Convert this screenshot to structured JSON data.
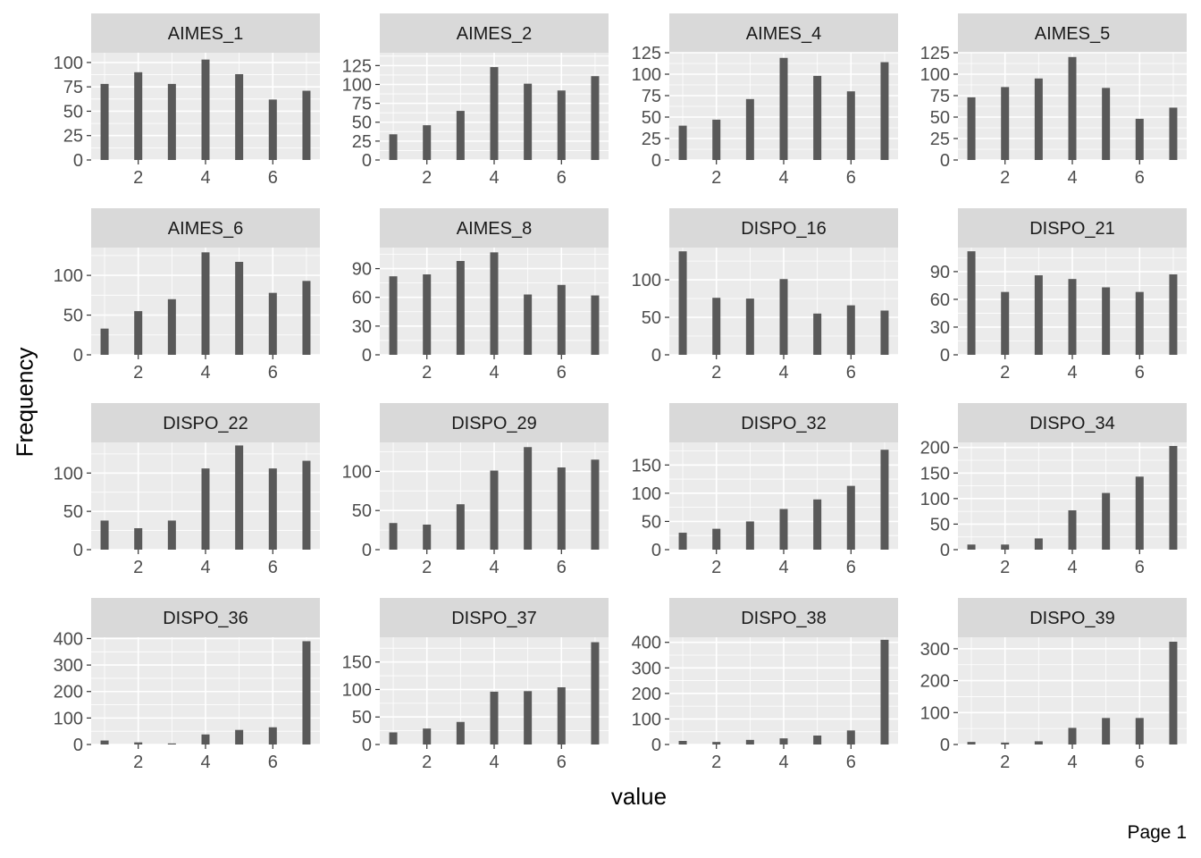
{
  "xlabel": "value",
  "ylabel": "Frequency",
  "footer": "Page 1",
  "colors": {
    "panel_bg": "#EBEBEB",
    "strip_bg": "#D9D9D9",
    "grid_major": "#FFFFFF",
    "bar": "#595959",
    "tick_text": "#4D4D4D",
    "strip_text": "#1A1A1A"
  },
  "chart_data": [
    {
      "type": "bar",
      "title": "AIMES_1",
      "x": [
        1,
        2,
        3,
        4,
        5,
        6,
        7
      ],
      "values": [
        78,
        90,
        78,
        103,
        88,
        62,
        71
      ],
      "xlim": [
        0.6,
        7.4
      ],
      "xticks": [
        2,
        4,
        6
      ],
      "ylim": [
        0,
        110
      ],
      "yticks": [
        0,
        25,
        50,
        75,
        100
      ]
    },
    {
      "type": "bar",
      "title": "AIMES_2",
      "x": [
        1,
        2,
        3,
        4,
        5,
        6,
        7
      ],
      "values": [
        34,
        46,
        65,
        123,
        101,
        92,
        111
      ],
      "xlim": [
        0.6,
        7.4
      ],
      "xticks": [
        2,
        4,
        6
      ],
      "ylim": [
        0,
        142
      ],
      "yticks": [
        0,
        25,
        50,
        75,
        100,
        125
      ]
    },
    {
      "type": "bar",
      "title": "AIMES_4",
      "x": [
        1,
        2,
        3,
        4,
        5,
        6,
        7
      ],
      "values": [
        40,
        47,
        71,
        119,
        98,
        80,
        114
      ],
      "xlim": [
        0.6,
        7.4
      ],
      "xticks": [
        2,
        4,
        6
      ],
      "ylim": [
        0,
        125
      ],
      "yticks": [
        0,
        25,
        50,
        75,
        100,
        125
      ]
    },
    {
      "type": "bar",
      "title": "AIMES_5",
      "x": [
        1,
        2,
        3,
        4,
        5,
        6,
        7
      ],
      "values": [
        73,
        85,
        95,
        120,
        84,
        48,
        61
      ],
      "xlim": [
        0.6,
        7.4
      ],
      "xticks": [
        2,
        4,
        6
      ],
      "ylim": [
        0,
        125
      ],
      "yticks": [
        0,
        25,
        50,
        75,
        100,
        125
      ]
    },
    {
      "type": "bar",
      "title": "AIMES_6",
      "x": [
        1,
        2,
        3,
        4,
        5,
        6,
        7
      ],
      "values": [
        33,
        55,
        70,
        129,
        117,
        78,
        93
      ],
      "xlim": [
        0.6,
        7.4
      ],
      "xticks": [
        2,
        4,
        6
      ],
      "ylim": [
        0,
        135
      ],
      "yticks": [
        0,
        50,
        100
      ]
    },
    {
      "type": "bar",
      "title": "AIMES_8",
      "x": [
        1,
        2,
        3,
        4,
        5,
        6,
        7
      ],
      "values": [
        82,
        84,
        98,
        107,
        63,
        73,
        62
      ],
      "xlim": [
        0.6,
        7.4
      ],
      "xticks": [
        2,
        4,
        6
      ],
      "ylim": [
        0,
        112
      ],
      "yticks": [
        0,
        30,
        60,
        90
      ]
    },
    {
      "type": "bar",
      "title": "DISPO_16",
      "x": [
        1,
        2,
        3,
        4,
        5,
        6,
        7
      ],
      "values": [
        138,
        76,
        75,
        101,
        55,
        66,
        59
      ],
      "xlim": [
        0.6,
        7.4
      ],
      "xticks": [
        2,
        4,
        6
      ],
      "ylim": [
        0,
        143
      ],
      "yticks": [
        0,
        50,
        100
      ]
    },
    {
      "type": "bar",
      "title": "DISPO_21",
      "x": [
        1,
        2,
        3,
        4,
        5,
        6,
        7
      ],
      "values": [
        112,
        68,
        86,
        82,
        73,
        68,
        87
      ],
      "xlim": [
        0.6,
        7.4
      ],
      "xticks": [
        2,
        4,
        6
      ],
      "ylim": [
        0,
        116
      ],
      "yticks": [
        0,
        30,
        60,
        90
      ]
    },
    {
      "type": "bar",
      "title": "DISPO_22",
      "x": [
        1,
        2,
        3,
        4,
        5,
        6,
        7
      ],
      "values": [
        38,
        28,
        38,
        106,
        136,
        106,
        116
      ],
      "xlim": [
        0.6,
        7.4
      ],
      "xticks": [
        2,
        4,
        6
      ],
      "ylim": [
        0,
        140
      ],
      "yticks": [
        0,
        50,
        100
      ]
    },
    {
      "type": "bar",
      "title": "DISPO_29",
      "x": [
        1,
        2,
        3,
        4,
        5,
        6,
        7
      ],
      "values": [
        34,
        32,
        58,
        101,
        131,
        105,
        115
      ],
      "xlim": [
        0.6,
        7.4
      ],
      "xticks": [
        2,
        4,
        6
      ],
      "ylim": [
        0,
        137
      ],
      "yticks": [
        0,
        50,
        100
      ]
    },
    {
      "type": "bar",
      "title": "DISPO_32",
      "x": [
        1,
        2,
        3,
        4,
        5,
        6,
        7
      ],
      "values": [
        30,
        37,
        50,
        72,
        89,
        113,
        177
      ],
      "xlim": [
        0.6,
        7.4
      ],
      "xticks": [
        2,
        4,
        6
      ],
      "ylim": [
        0,
        190
      ],
      "yticks": [
        0,
        50,
        100,
        150
      ]
    },
    {
      "type": "bar",
      "title": "DISPO_34",
      "x": [
        1,
        2,
        3,
        4,
        5,
        6,
        7
      ],
      "values": [
        10,
        10,
        22,
        77,
        111,
        143,
        203
      ],
      "xlim": [
        0.6,
        7.4
      ],
      "xticks": [
        2,
        4,
        6
      ],
      "ylim": [
        0,
        210
      ],
      "yticks": [
        0,
        50,
        100,
        150,
        200
      ]
    },
    {
      "type": "bar",
      "title": "DISPO_36",
      "x": [
        1,
        2,
        3,
        4,
        5,
        6,
        7
      ],
      "values": [
        15,
        8,
        4,
        38,
        55,
        65,
        390
      ],
      "xlim": [
        0.6,
        7.4
      ],
      "xticks": [
        2,
        4,
        6
      ],
      "ylim": [
        0,
        405
      ],
      "yticks": [
        0,
        100,
        200,
        300,
        400
      ]
    },
    {
      "type": "bar",
      "title": "DISPO_37",
      "x": [
        1,
        2,
        3,
        4,
        5,
        6,
        7
      ],
      "values": [
        22,
        29,
        41,
        96,
        97,
        104,
        186
      ],
      "xlim": [
        0.6,
        7.4
      ],
      "xticks": [
        2,
        4,
        6
      ],
      "ylim": [
        0,
        195
      ],
      "yticks": [
        0,
        50,
        100,
        150
      ]
    },
    {
      "type": "bar",
      "title": "DISPO_38",
      "x": [
        1,
        2,
        3,
        4,
        5,
        6,
        7
      ],
      "values": [
        14,
        10,
        18,
        24,
        35,
        55,
        410
      ],
      "xlim": [
        0.6,
        7.4
      ],
      "xticks": [
        2,
        4,
        6
      ],
      "ylim": [
        0,
        420
      ],
      "yticks": [
        0,
        100,
        200,
        300,
        400
      ]
    },
    {
      "type": "bar",
      "title": "DISPO_39",
      "x": [
        1,
        2,
        3,
        4,
        5,
        6,
        7
      ],
      "values": [
        8,
        6,
        10,
        52,
        83,
        83,
        322
      ],
      "xlim": [
        0.6,
        7.4
      ],
      "xticks": [
        2,
        4,
        6
      ],
      "ylim": [
        0,
        336
      ],
      "yticks": [
        0,
        100,
        200,
        300
      ]
    }
  ]
}
